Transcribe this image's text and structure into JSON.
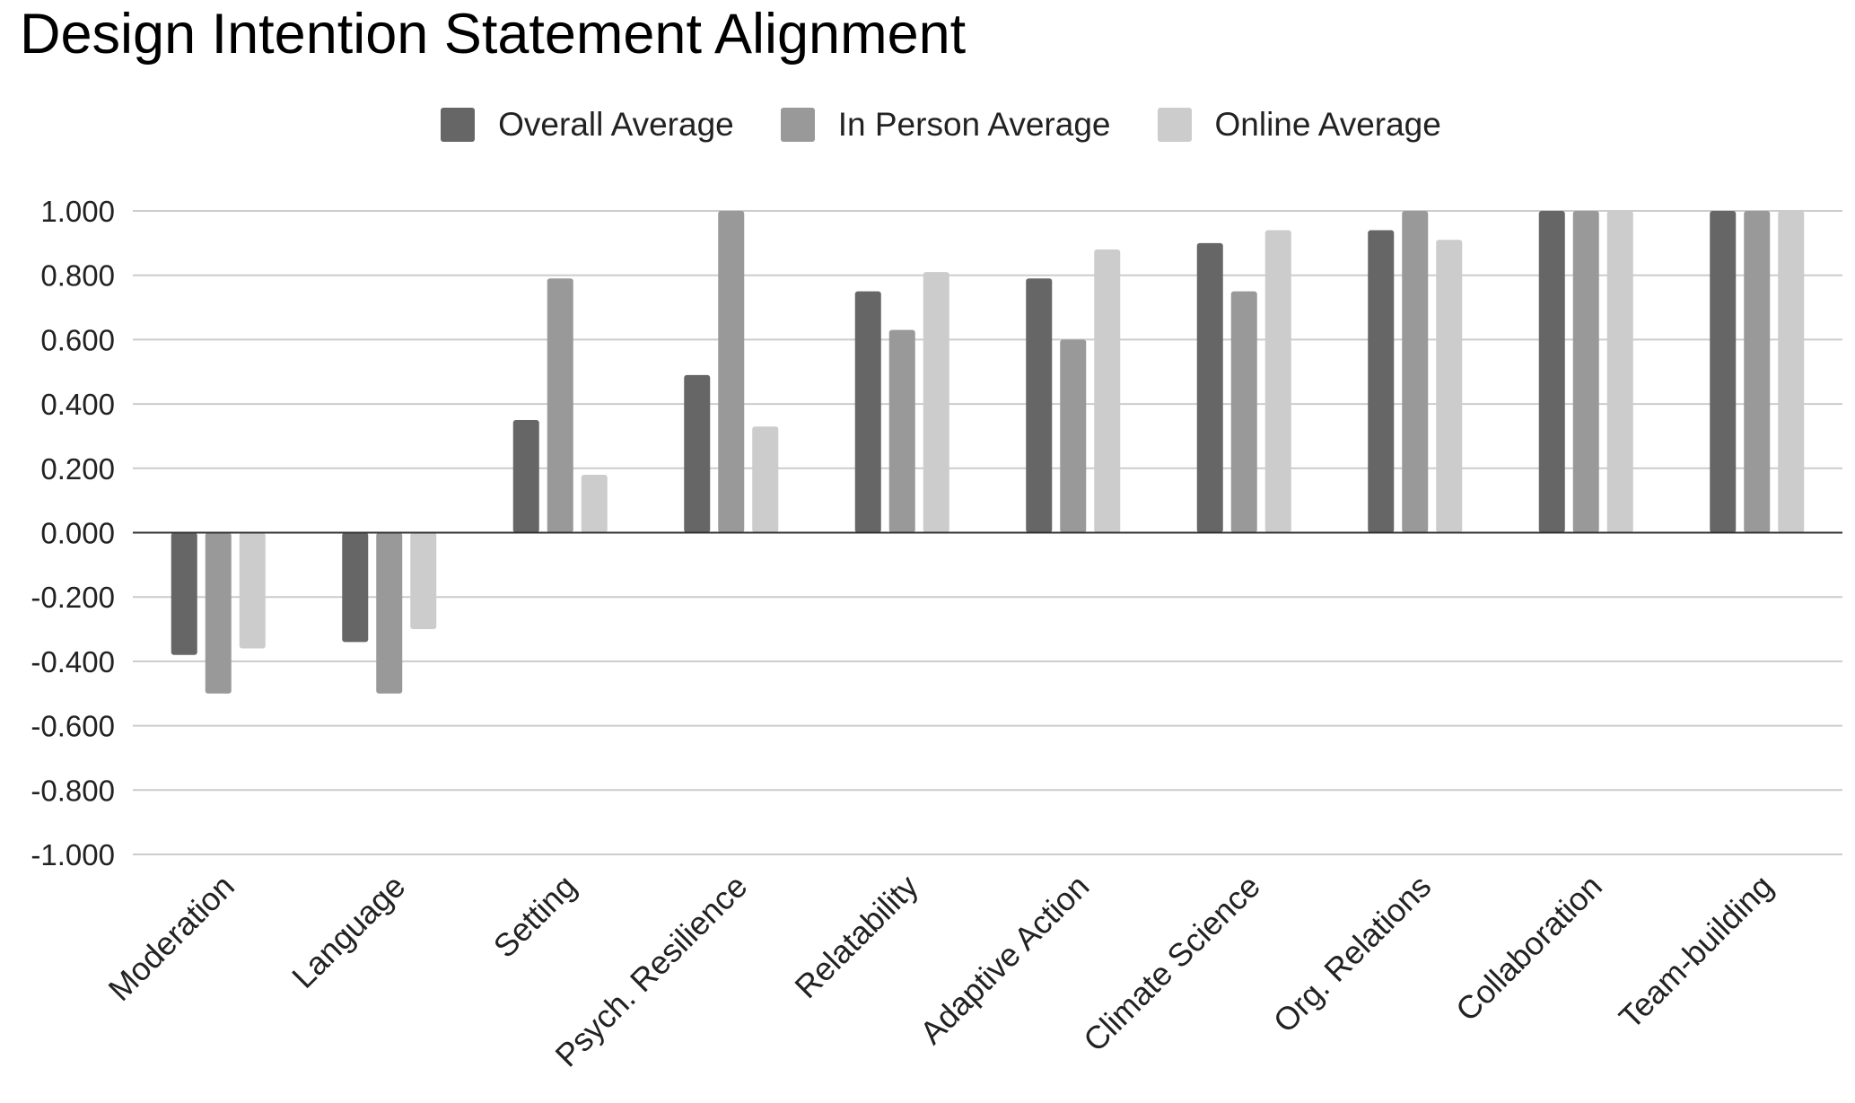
{
  "chart_data": {
    "type": "bar",
    "title": "Design Intention Statement Alignment",
    "xlabel": "",
    "ylabel": "",
    "ylim": [
      -1.0,
      1.0
    ],
    "yticks": [
      "1.000",
      "0.800",
      "0.600",
      "0.400",
      "0.200",
      "0.000",
      "-0.200",
      "-0.400",
      "-0.600",
      "-0.800",
      "-1.000"
    ],
    "grid": true,
    "legend_position": "top",
    "categories": [
      "Moderation",
      "Language",
      "Setting",
      "Psych. Resilience",
      "Relatability",
      "Adaptive Action",
      "Climate Science",
      "Org. Relations",
      "Collaboration",
      "Team-building"
    ],
    "series": [
      {
        "name": "Overall Average",
        "color": "#666666",
        "values": [
          -0.38,
          -0.34,
          0.35,
          0.49,
          0.75,
          0.79,
          0.9,
          0.94,
          1.0,
          1.0
        ]
      },
      {
        "name": "In Person Average",
        "color": "#999999",
        "values": [
          -0.5,
          -0.5,
          0.79,
          1.0,
          0.63,
          0.6,
          0.75,
          1.0,
          1.0,
          1.0
        ]
      },
      {
        "name": "Online Average",
        "color": "#cccccc",
        "values": [
          -0.36,
          -0.3,
          0.18,
          0.33,
          0.81,
          0.88,
          0.94,
          0.91,
          1.0,
          1.0
        ]
      }
    ]
  }
}
